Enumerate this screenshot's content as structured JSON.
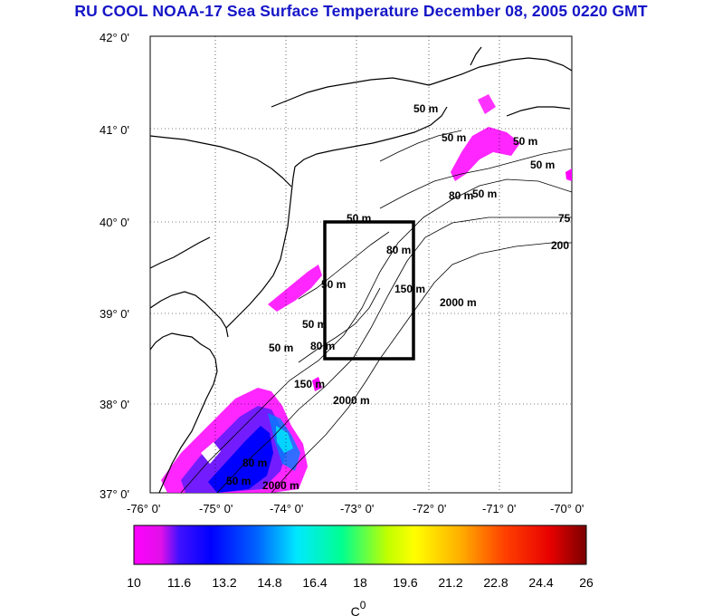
{
  "title": "RU COOL  NOAA-17 Sea Surface Temperature December 08, 2005 0220 GMT",
  "map": {
    "lat_labels": [
      "42° 0'",
      "41° 0'",
      "40° 0'",
      "39° 0'",
      "38° 0'",
      "37° 0'"
    ],
    "lon_labels": [
      "-76° 0'",
      "-75° 0'",
      "-74° 0'",
      "-73° 0'",
      "-72° 0'",
      "-71° 0'",
      "-70° 0'"
    ],
    "lat_range": [
      37,
      42
    ],
    "lon_range": [
      -76,
      -70
    ],
    "contour_labels": [
      "50 m",
      "50 m",
      "50 m",
      "80 m",
      "50 m",
      "75",
      "200",
      "50 m",
      "80 m",
      "150 m",
      "2000 m",
      "50 m",
      "50 m",
      "50 m",
      "80 m",
      "150 m",
      "2000 m",
      "50 m",
      "2000 m",
      "50 m",
      "80 m"
    ],
    "study_box": {
      "lon_min": -73.4,
      "lon_max": -72.3,
      "lat_min": 38.5,
      "lat_max": 40.0
    }
  },
  "colorbar": {
    "tick_labels": [
      "10",
      "11.6",
      "13.2",
      "14.8",
      "16.4",
      "18",
      "19.6",
      "21.2",
      "22.8",
      "24.4",
      "26"
    ],
    "min": 10,
    "max": 26,
    "unit_label": "C",
    "unit_superscript": "0"
  },
  "colors": {
    "title": "#1515c8",
    "land": "#ffffff",
    "sst_cold": "#ff00ff",
    "sst_blue": "#0000ff"
  }
}
